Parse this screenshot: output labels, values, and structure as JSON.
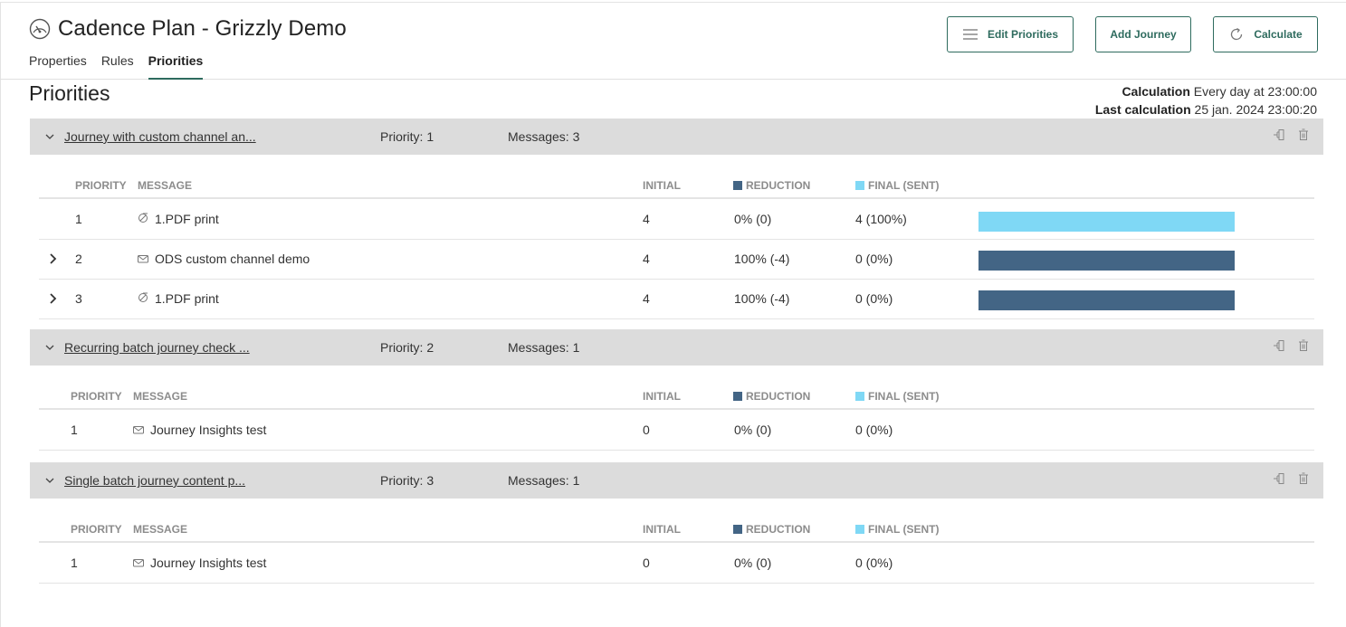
{
  "app": {
    "title": "Cadence Plan - Grizzly Demo",
    "tabs": [
      "Properties",
      "Rules",
      "Priorities"
    ],
    "active_tab": "Priorities",
    "buttons": {
      "edit": "Edit Priorities",
      "add": "Add Journey",
      "calculate": "Calculate"
    }
  },
  "section": {
    "title": "Priorities",
    "calculation_label": "Calculation",
    "calculation_value": "Every day at 23:00:00",
    "last_label": "Last calculation",
    "last_value": "25 jan. 2024 23:00:20"
  },
  "columns": {
    "priority": "PRIORITY",
    "message": "MESSAGE",
    "initial": "INITIAL",
    "reduction": "REDUCTION",
    "final": "FINAL (SENT)"
  },
  "colors": {
    "accent": "#2e6b5e",
    "reduction": "#436585",
    "final": "#7fd8f5",
    "journey_header": "#dcdcdc"
  },
  "journeys": [
    {
      "name": "Journey with custom channel an...",
      "priority": "Priority: 1",
      "messages": "Messages: 3",
      "rows": [
        {
          "priority": "1",
          "icon": "print-icon",
          "message": "1.PDF print",
          "initial": "4",
          "reduction": "0% (0)",
          "final": "4 (100%)",
          "expandable": false,
          "bar": "final"
        },
        {
          "priority": "2",
          "icon": "envelope-icon",
          "message": "ODS custom channel demo",
          "initial": "4",
          "reduction": "100% (-4)",
          "final": "0 (0%)",
          "expandable": true,
          "bar": "reduction"
        },
        {
          "priority": "3",
          "icon": "print-icon",
          "message": "1.PDF print",
          "initial": "4",
          "reduction": "100% (-4)",
          "final": "0 (0%)",
          "expandable": true,
          "bar": "reduction"
        }
      ]
    },
    {
      "name": "Recurring batch journey check ...",
      "priority": "Priority: 2",
      "messages": "Messages: 1",
      "rows": [
        {
          "priority": "1",
          "icon": "envelope-icon",
          "message": "Journey Insights test",
          "initial": "0",
          "reduction": "0% (0)",
          "final": "0 (0%)",
          "expandable": false,
          "bar": "none"
        }
      ]
    },
    {
      "name": "Single batch journey content p...",
      "priority": "Priority: 3",
      "messages": "Messages: 1",
      "rows": [
        {
          "priority": "1",
          "icon": "envelope-icon",
          "message": "Journey Insights test",
          "initial": "0",
          "reduction": "0% (0)",
          "final": "0 (0%)",
          "expandable": false,
          "bar": "none"
        }
      ]
    }
  ]
}
